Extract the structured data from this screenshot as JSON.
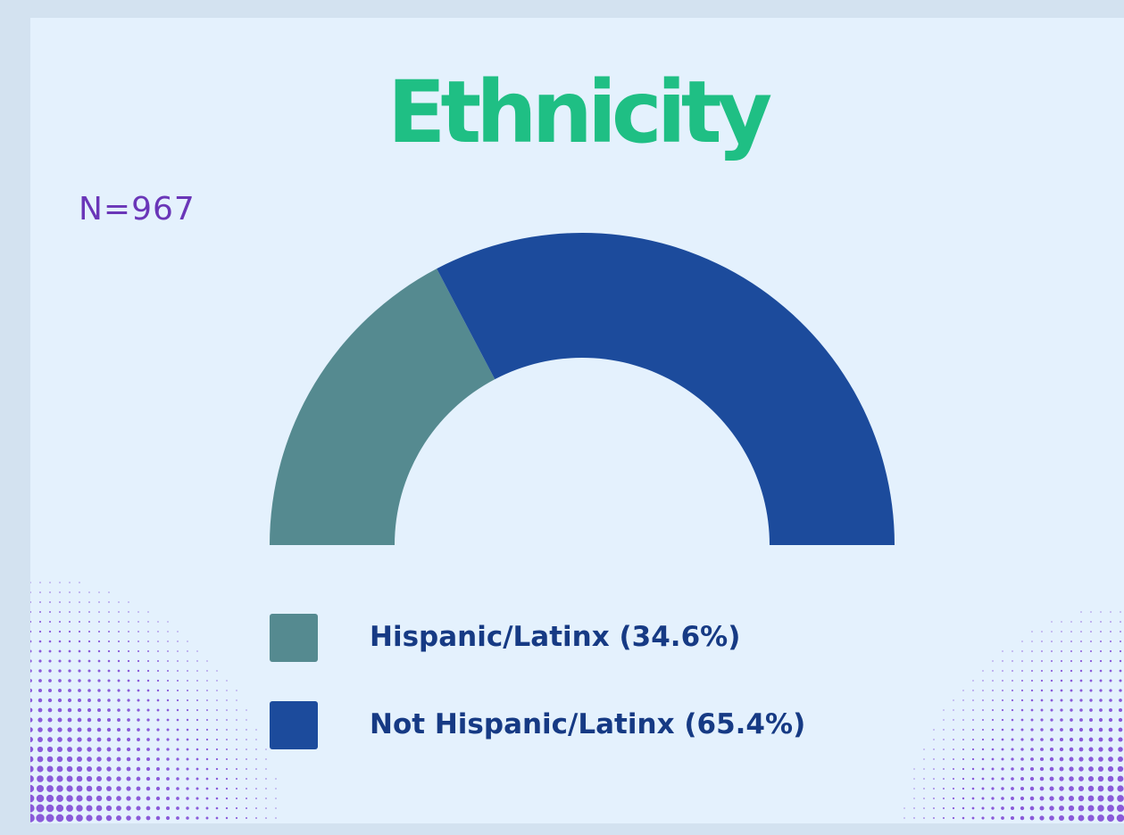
{
  "title": "Ethnicity",
  "sample_size": "N=967",
  "colors": {
    "title": "#1fbf84",
    "sample_size": "#6a36b8",
    "legend_text": "#163a84",
    "dots": "#8a5ad9"
  },
  "chart_data": {
    "type": "pie",
    "subtype": "semicircle-donut",
    "title": "Ethnicity",
    "annotation": "N=967",
    "legend_position": "bottom",
    "slices": [
      {
        "label": "Hispanic/Latinx (34.6%)",
        "value": 34.6,
        "color": "#558a90"
      },
      {
        "label": "Not Hispanic/Latinx (65.4%)",
        "value": 65.4,
        "color": "#1c4b9c"
      }
    ]
  }
}
